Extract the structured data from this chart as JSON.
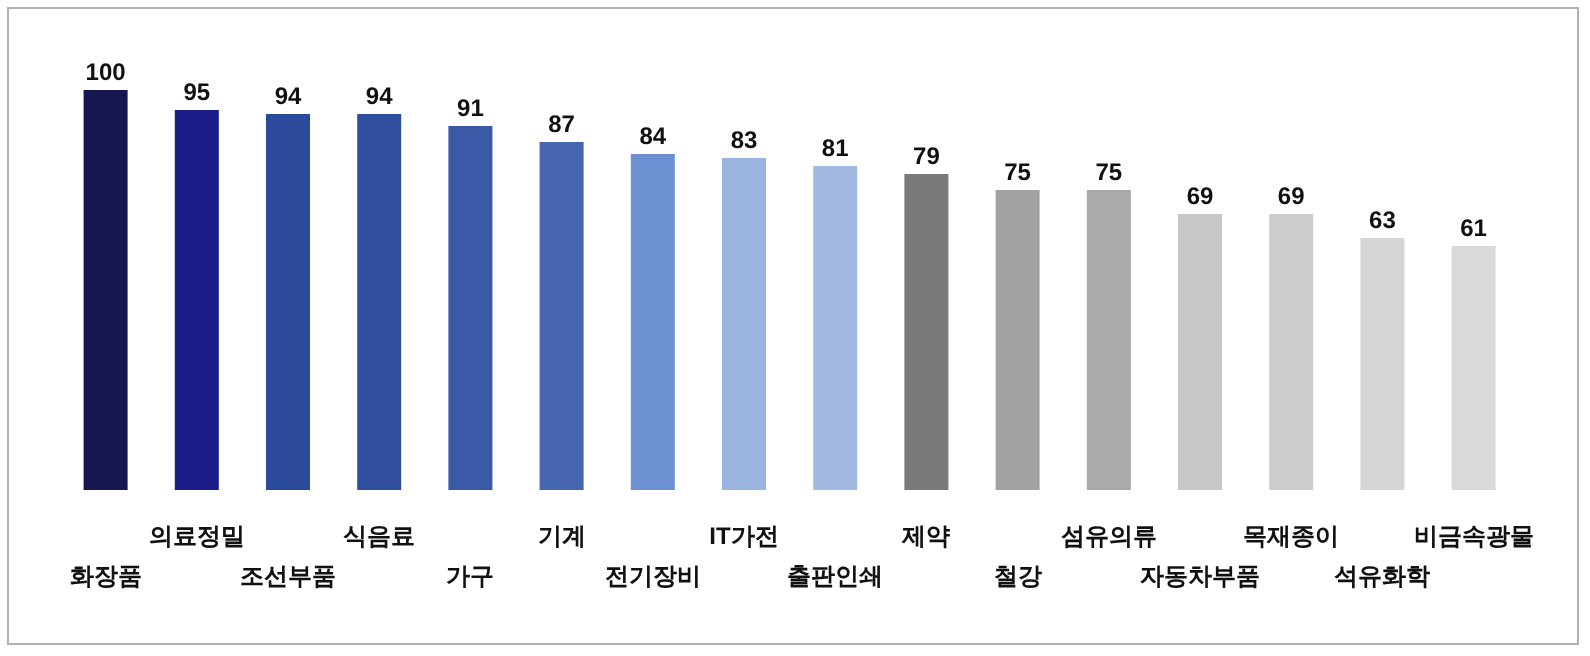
{
  "chart_data": {
    "type": "bar",
    "categories": [
      "화장품",
      "의료정밀",
      "조선부품",
      "식음료",
      "가구",
      "기계",
      "전기장비",
      "IT가전",
      "출판인쇄",
      "제약",
      "철강",
      "섬유의류",
      "자동차부품",
      "목재종이",
      "석유화학",
      "비금속광물"
    ],
    "values": [
      100,
      95,
      94,
      94,
      91,
      87,
      84,
      83,
      81,
      79,
      75,
      75,
      69,
      69,
      63,
      61
    ],
    "colors": [
      "#161650",
      "#1c1c88",
      "#2c4a9c",
      "#2f4f9e",
      "#3a5aa8",
      "#4666b0",
      "#6c90d2",
      "#9ab4e0",
      "#a2bae2",
      "#7a7a7a",
      "#a2a2a2",
      "#aaaaaa",
      "#c8c8c8",
      "#cccccc",
      "#d6d6d6",
      "#dadada"
    ],
    "data_labels": true
  }
}
